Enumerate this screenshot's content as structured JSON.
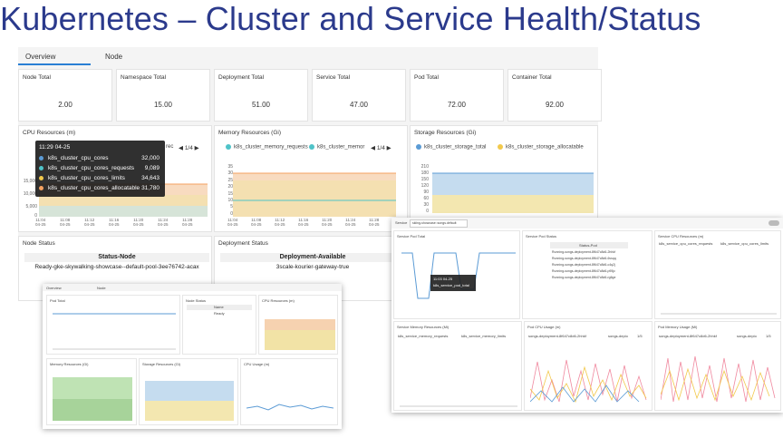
{
  "page_title": "Kubernetes – Cluster and Service Health/Status",
  "tabs": [
    {
      "label": "Overview"
    },
    {
      "label": "Node"
    }
  ],
  "stats": [
    {
      "label": "Node Total",
      "value": "2.00"
    },
    {
      "label": "Namespace Total",
      "value": "15.00"
    },
    {
      "label": "Deployment Total",
      "value": "51.00"
    },
    {
      "label": "Service Total",
      "value": "47.00"
    },
    {
      "label": "Pod Total",
      "value": "72.00"
    },
    {
      "label": "Container Total",
      "value": "92.00"
    }
  ],
  "cpu_panel": {
    "title": "CPU Resources (m)",
    "legend_tail": "rec",
    "pager": "1/4",
    "y_ticks": [
      "15,000",
      "10,000",
      "5,000",
      "0"
    ],
    "x_ticks": [
      "11:04\n04-25",
      "11:08\n04-25",
      "11:12\n04-25",
      "11:16\n04-25",
      "11:20\n04-25",
      "11:24\n04-25",
      "11:28\n04-25"
    ],
    "tooltip": {
      "time": "11:29 04-25",
      "rows": [
        {
          "name": "k8s_cluster_cpu_cores",
          "value": "32,000",
          "color": "#5b9bd5"
        },
        {
          "name": "k8s_cluster_cpu_cores_requests",
          "value": "9,089",
          "color": "#4fc3c8"
        },
        {
          "name": "k8s_cluster_cpu_cores_limits",
          "value": "34,643",
          "color": "#f2c94c"
        },
        {
          "name": "k8s_cluster_cpu_cores_allocatable",
          "value": "31,780",
          "color": "#f4a261"
        }
      ]
    }
  },
  "memory_panel": {
    "title": "Memory Resources (Gi)",
    "legend": [
      {
        "name": "k8s_cluster_memory_requests",
        "color": "#4fc3c8"
      },
      {
        "name": "k8s_cluster_memor",
        "color": "#4fc3c8"
      }
    ],
    "pager": "1/4",
    "y_ticks": [
      "35",
      "30",
      "25",
      "20",
      "15",
      "10",
      "5",
      "0"
    ],
    "x_ticks": [
      "11:04\n04-25",
      "11:08\n04-25",
      "11:12\n04-25",
      "11:16\n04-25",
      "11:20\n04-25",
      "11:24\n04-25",
      "11:28\n04-25"
    ]
  },
  "storage_panel": {
    "title": "Storage Resources (Gi)",
    "legend": [
      {
        "name": "k8s_cluster_storage_total",
        "color": "#5b9bd5"
      },
      {
        "name": "k8s_cluster_storage_allocatable",
        "color": "#f2c94c"
      }
    ],
    "y_ticks": [
      "210",
      "180",
      "150",
      "120",
      "90",
      "60",
      "30",
      "0"
    ]
  },
  "node_status": {
    "title": "Node Status",
    "header": "Status-Node",
    "row": "Ready-gke-skywalking-showcase--default-pool-3ee76742-acax"
  },
  "deployment_status": {
    "title": "Deployment Status",
    "header": "Deployment-Available",
    "row": "3scale-kourier-gateway-true"
  },
  "service_shot": {
    "search_label": "Service",
    "search_value": "skiing-showcase::songs.default",
    "pod_total": {
      "title": "Service Pod Total",
      "tooltip_time": "11:03 04-25",
      "tooltip_series": "k8s_service_pod_total"
    },
    "pod_status": {
      "title": "Service Pod Status",
      "header": "Status-Pod",
      "rows": [
        "Running-songs-deployment-8f647c8d6-2hhkf",
        "Running-songs-deployment-8f647c8d6-6vsqq",
        "Running-songs-deployment-8f647c8d6-c4q2j",
        "Running-songs-deployment-8f647c8d6-p95jc",
        "Running-songs-deployment-8f647c8d6-rg6ge"
      ]
    },
    "cpu": {
      "title": "Service CPU Resources (m)",
      "legend": [
        "k8s_service_cpu_cores_requests",
        "k8s_service_cpu_cores_limits"
      ]
    },
    "memory": {
      "title": "Service Memory Resources (Mi)",
      "legend": [
        "k8s_service_memory_requests",
        "k8s_service_memory_limits"
      ]
    },
    "pod_cpu": {
      "title": "Pod CPU Usage (m)",
      "legend": [
        "songs-deployment-8f647c8d6-2hhkf",
        "songs-deplo"
      ],
      "pager": "1/5"
    },
    "pod_mem": {
      "title": "Pod Memory Usage (Mi)",
      "legend": [
        "songs-deployment-8f647c8d6-2hhkf",
        "songs-deplo"
      ],
      "pager": "1/5"
    }
  },
  "node_shot": {
    "tabs": [
      "Overview",
      "Node"
    ],
    "panels": [
      "Pod Total",
      "Node Status",
      "CPU Resources (m)",
      "Memory Resources (Gi)",
      "Storage Resources (Gi)",
      "CPU Usage (m)"
    ],
    "table_header": "Name",
    "table_row": "Ready"
  }
}
